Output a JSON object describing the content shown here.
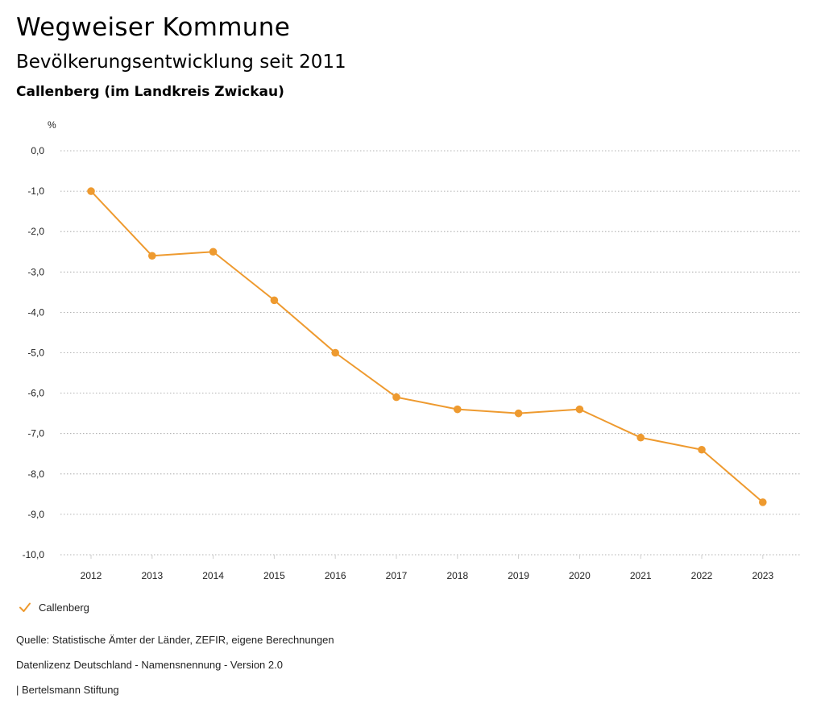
{
  "header": {
    "title": "Wegweiser Kommune",
    "subtitle": "Bevölkerungsentwicklung seit 2011",
    "region": "Callenberg (im Landkreis Zwickau)"
  },
  "colors": {
    "series": "#ee9a2f",
    "grid": "#9a9a9a",
    "axis": "#cfcfcf"
  },
  "chart_data": {
    "type": "line",
    "ylabel": "%",
    "ylim": [
      -10,
      0
    ],
    "yticks": [
      0,
      -1,
      -2,
      -3,
      -4,
      -5,
      -6,
      -7,
      -8,
      -9,
      -10
    ],
    "ytick_labels": [
      "0,0",
      "-1,0",
      "-2,0",
      "-3,0",
      "-4,0",
      "-5,0",
      "-6,0",
      "-7,0",
      "-8,0",
      "-9,0",
      "-10,0"
    ],
    "x": [
      "2012",
      "2013",
      "2014",
      "2015",
      "2016",
      "2017",
      "2018",
      "2019",
      "2020",
      "2021",
      "2022",
      "2023"
    ],
    "series": [
      {
        "name": "Callenberg",
        "values": [
          -1.0,
          -2.6,
          -2.5,
          -3.7,
          -5.0,
          -6.1,
          -6.4,
          -6.5,
          -6.4,
          -7.1,
          -7.4,
          -8.7
        ]
      }
    ],
    "grid": true,
    "legend": "bottom-left"
  },
  "legend": {
    "label": "Callenberg"
  },
  "footer": {
    "source": "Quelle: Statistische Ämter der Länder, ZEFIR, eigene Berechnungen",
    "license": "Datenlizenz Deutschland - Namensnennung - Version 2.0",
    "credit": "| Bertelsmann Stiftung"
  }
}
